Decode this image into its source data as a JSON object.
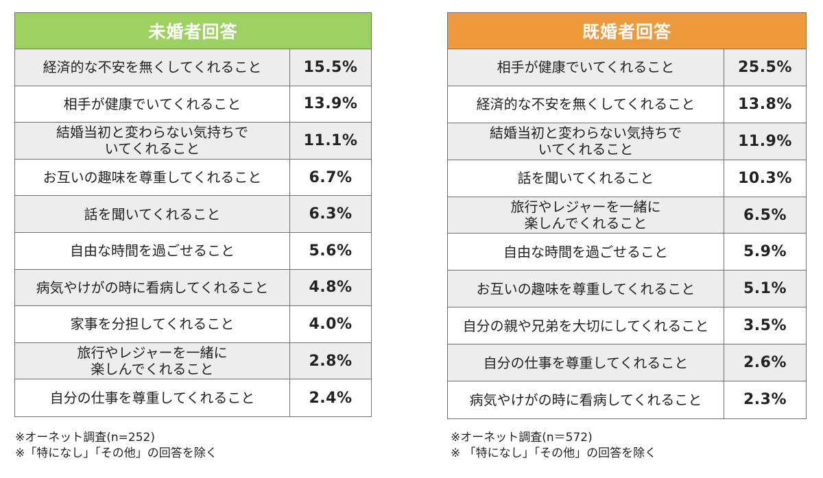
{
  "unmarried": {
    "title": "未婚者回答",
    "header_color": "#9dd262",
    "rows": [
      {
        "label": "経済的な不安を無くしてくれること",
        "value": "15.5%"
      },
      {
        "label": "相手が健康でいてくれること",
        "value": "13.9%"
      },
      {
        "label": "結婚当初と変わらない気持ちで\nいてくれること",
        "value": "11.1%"
      },
      {
        "label": "お互いの趣味を尊重してくれること",
        "value": "6.7%"
      },
      {
        "label": "話を聞いてくれること",
        "value": "6.3%"
      },
      {
        "label": "自由な時間を過ごせること",
        "value": "5.6%"
      },
      {
        "label": "病気やけがの時に看病してくれること",
        "value": "4.8%"
      },
      {
        "label": "家事を分担してくれること",
        "value": "4.0%"
      },
      {
        "label": "旅行やレジャーを一緒に\n楽しんでくれること",
        "value": "2.8%"
      },
      {
        "label": "自分の仕事を尊重してくれること",
        "value": "2.4%"
      }
    ],
    "notes": [
      "※オーネット調査(n=252)",
      "※「特になし」「その他」の回答を除く"
    ]
  },
  "married": {
    "title": "既婚者回答",
    "header_color": "#ec9a3c",
    "rows": [
      {
        "label": "相手が健康でいてくれること",
        "value": "25.5%"
      },
      {
        "label": "経済的な不安を無くしてくれること",
        "value": "13.8%"
      },
      {
        "label": "結婚当初と変わらない気持ちで\nいてくれること",
        "value": "11.9%"
      },
      {
        "label": "話を聞いてくれること",
        "value": "10.3%"
      },
      {
        "label": "旅行やレジャーを一緒に\n楽しんでくれること",
        "value": "6.5%"
      },
      {
        "label": "自由な時間を過ごせること",
        "value": "5.9%"
      },
      {
        "label": "お互いの趣味を尊重してくれること",
        "value": "5.1%"
      },
      {
        "label": "自分の親や兄弟を大切にしてくれること",
        "value": "3.5%"
      },
      {
        "label": "自分の仕事を尊重してくれること",
        "value": "2.6%"
      },
      {
        "label": "病気やけがの時に看病してくれること",
        "value": "2.3%"
      }
    ],
    "notes": [
      "※オーネット調査(n＝572)",
      "※ 「特になし」「その他」の回答を除く"
    ]
  }
}
